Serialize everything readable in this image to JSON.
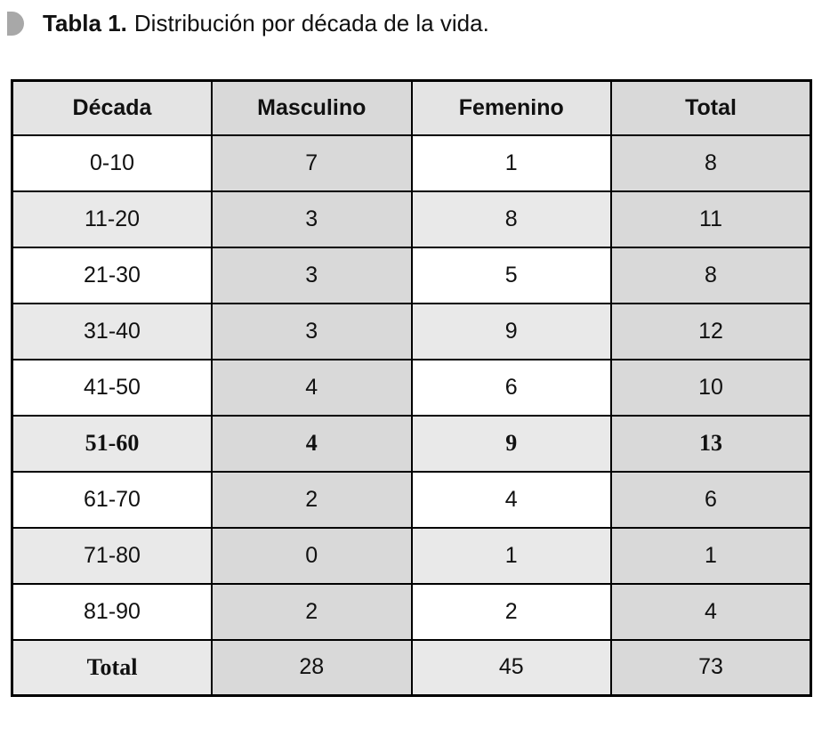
{
  "caption": {
    "bullet_color": "#a8a8a8",
    "label": "Tabla 1.",
    "text": "Distribución por década de la vida."
  },
  "table": {
    "columns": [
      "Década",
      "Masculino",
      "Femenino",
      "Total"
    ],
    "rows": [
      {
        "decada": "0-10",
        "masculino": "7",
        "femenino": "1",
        "total": "8"
      },
      {
        "decada": "11-20",
        "masculino": "3",
        "femenino": "8",
        "total": "11"
      },
      {
        "decada": "21-30",
        "masculino": "3",
        "femenino": "5",
        "total": "8"
      },
      {
        "decada": "31-40",
        "masculino": "3",
        "femenino": "9",
        "total": "12"
      },
      {
        "decada": "41-50",
        "masculino": "4",
        "femenino": "6",
        "total": "10"
      },
      {
        "decada": "51-60",
        "masculino": "4",
        "femenino": "9",
        "total": "13",
        "serif": true
      },
      {
        "decada": "61-70",
        "masculino": "2",
        "femenino": "4",
        "total": "6"
      },
      {
        "decada": "71-80",
        "masculino": "0",
        "femenino": "1",
        "total": "1"
      },
      {
        "decada": "81-90",
        "masculino": "2",
        "femenino": "2",
        "total": "4"
      },
      {
        "decada": "Total",
        "masculino": "28",
        "femenino": "45",
        "total": "73",
        "total_row": true
      }
    ],
    "colors": {
      "column_shade_dark": "#d9d9d9",
      "column_shade_light": "#e9e9e9",
      "header_shade_light": "#e4e4e4",
      "border": "#000000"
    }
  }
}
